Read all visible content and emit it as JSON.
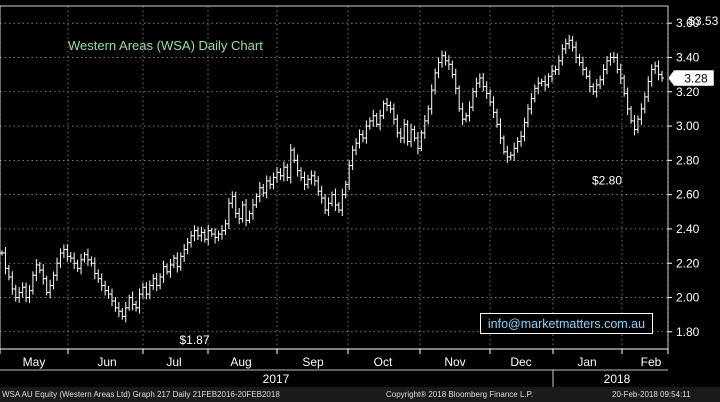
{
  "title": "Western Areas (WSA) Daily Chart",
  "contact": "info@marketmatters.com.au",
  "footer": {
    "left": "WSA AU Equity (Western Areas Ltd) Graph 217  Daily 21FEB2016-20FEB2018",
    "center": "Copyright® 2018 Bloomberg Finance L.P.",
    "right": "20-Feb-2018 09:54:11"
  },
  "colors": {
    "background": "#000000",
    "bars": "#ffffff",
    "grid": "#ffffff",
    "title": "#8fe3a0",
    "contact": "#7fd7ff"
  },
  "chart_data": {
    "type": "ohlc",
    "ylim": [
      1.7,
      3.7
    ],
    "y_ticks": [
      "1.80",
      "2.00",
      "2.20",
      "2.40",
      "2.60",
      "2.80",
      "3.00",
      "3.20",
      "3.40",
      "3.60"
    ],
    "y_tick_values": [
      1.8,
      2.0,
      2.2,
      2.4,
      2.6,
      2.8,
      3.0,
      3.2,
      3.4,
      3.6
    ],
    "grid": true,
    "months": [
      "May",
      "Jun",
      "Jul",
      "Aug",
      "Sep",
      "Oct",
      "Nov",
      "Dec",
      "Jan",
      "Feb"
    ],
    "years": [
      "2017",
      "2018"
    ],
    "last_price": "3.28",
    "annotations": [
      {
        "label": "$1.87",
        "x": 56,
        "y": 1.87
      },
      {
        "label": "$2.80",
        "x": 176,
        "y": 2.8
      },
      {
        "label": "$3.53",
        "x": 204,
        "y": 3.53
      }
    ],
    "closes": [
      2.26,
      2.17,
      2.12,
      2.05,
      2.0,
      2.03,
      2.06,
      2.0,
      2.04,
      2.13,
      2.19,
      2.16,
      2.11,
      2.03,
      2.07,
      2.13,
      2.2,
      2.26,
      2.28,
      2.24,
      2.23,
      2.2,
      2.17,
      2.22,
      2.25,
      2.22,
      2.2,
      2.14,
      2.11,
      2.07,
      2.04,
      2.02,
      1.98,
      1.94,
      1.92,
      1.89,
      1.94,
      2.0,
      1.96,
      1.94,
      2.02,
      2.06,
      2.02,
      2.07,
      2.11,
      2.07,
      2.12,
      2.18,
      2.15,
      2.19,
      2.23,
      2.18,
      2.24,
      2.28,
      2.32,
      2.36,
      2.39,
      2.36,
      2.38,
      2.34,
      2.39,
      2.37,
      2.35,
      2.37,
      2.39,
      2.43,
      2.55,
      2.59,
      2.49,
      2.46,
      2.54,
      2.45,
      2.49,
      2.54,
      2.59,
      2.64,
      2.61,
      2.68,
      2.66,
      2.7,
      2.73,
      2.71,
      2.76,
      2.7,
      2.86,
      2.8,
      2.74,
      2.7,
      2.66,
      2.69,
      2.71,
      2.68,
      2.62,
      2.58,
      2.51,
      2.55,
      2.6,
      2.54,
      2.51,
      2.6,
      2.66,
      2.77,
      2.86,
      2.9,
      2.95,
      2.93,
      3.0,
      3.03,
      3.06,
      3.01,
      3.06,
      3.13,
      3.12,
      3.1,
      3.04,
      2.96,
      2.93,
      3.01,
      2.91,
      2.98,
      2.93,
      2.87,
      2.96,
      3.03,
      3.1,
      3.21,
      3.31,
      3.37,
      3.41,
      3.38,
      3.36,
      3.3,
      3.22,
      3.1,
      3.04,
      3.06,
      3.11,
      3.2,
      3.25,
      3.28,
      3.23,
      3.19,
      3.14,
      3.08,
      3.01,
      2.93,
      2.85,
      2.82,
      2.83,
      2.87,
      2.91,
      2.94,
      3.02,
      3.1,
      3.16,
      3.22,
      3.25,
      3.26,
      3.24,
      3.29,
      3.32,
      3.33,
      3.38,
      3.45,
      3.48,
      3.5,
      3.46,
      3.4,
      3.37,
      3.33,
      3.29,
      3.23,
      3.2,
      3.24,
      3.27,
      3.33,
      3.38,
      3.4,
      3.4,
      3.33,
      3.28,
      3.19,
      3.1,
      3.03,
      2.98,
      3.04,
      3.1,
      3.17,
      3.26,
      3.33,
      3.35,
      3.3,
      3.28
    ]
  }
}
